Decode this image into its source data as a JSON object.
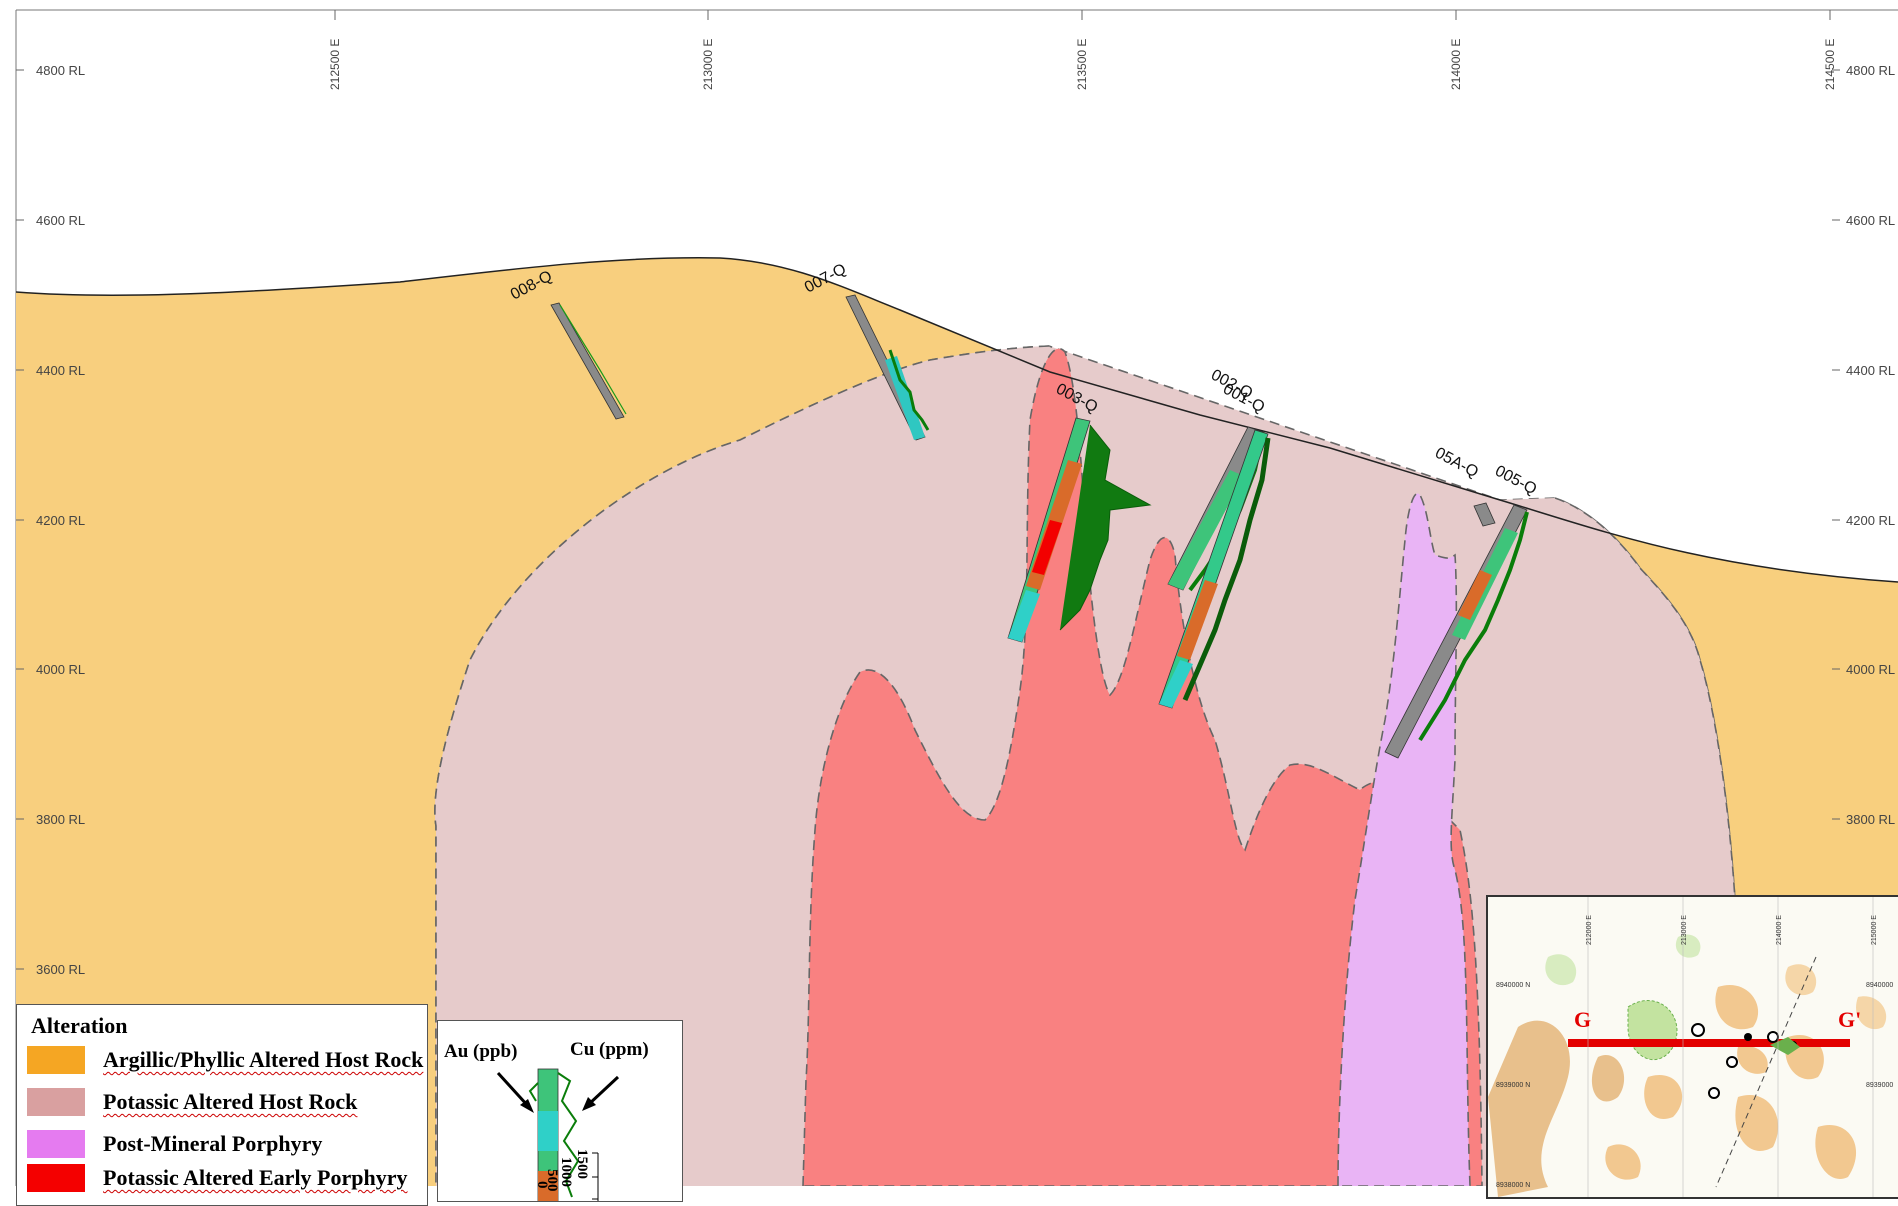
{
  "section": {
    "rl_labels": [
      "4800 RL",
      "4600 RL",
      "4400 RL",
      "4200 RL",
      "4000 RL",
      "3800 RL",
      "3600 RL"
    ],
    "easting_labels": [
      "212500 E",
      "213000 E",
      "213500 E",
      "214000 E",
      "214500 E"
    ],
    "drillholes": [
      "008-Q",
      "007-Q",
      "003-Q",
      "002-Q",
      "001-Q",
      "05A-Q",
      "005-Q"
    ]
  },
  "legend": {
    "title": "Alteration",
    "items": [
      {
        "label": "Argillic/Phyllic Altered Host Rock",
        "color": "#f5a623"
      },
      {
        "label": "Potassic Altered Host Rock",
        "color": "#d9a0a0"
      },
      {
        "label": "Post-Mineral Porphyry",
        "color": "#e57bf0"
      },
      {
        "label": "Potassic Altered Early Porphyry",
        "color": "#f40000"
      }
    ]
  },
  "key": {
    "au_label": "Au (ppb)",
    "cu_label": "Cu (ppm)",
    "scale_labels": [
      "1500",
      "1000",
      "500",
      "0"
    ]
  },
  "inset": {
    "easting_labels": [
      "212000 E",
      "213000 E",
      "214000 E",
      "215000 E"
    ],
    "northing_labels": [
      "8940000 N",
      "8939000 N",
      "8938000 N"
    ],
    "right_northing_labels": [
      "8940000",
      "8939000"
    ],
    "section_start": "G",
    "section_end": "G'"
  },
  "colors": {
    "argillic_fill": "#f8cf7e",
    "potassic_fill": "#e6cbcb",
    "porphyry_fill": "#f98181",
    "post_mineral_fill": "#e9b4f5",
    "section_line": "#e30000"
  }
}
